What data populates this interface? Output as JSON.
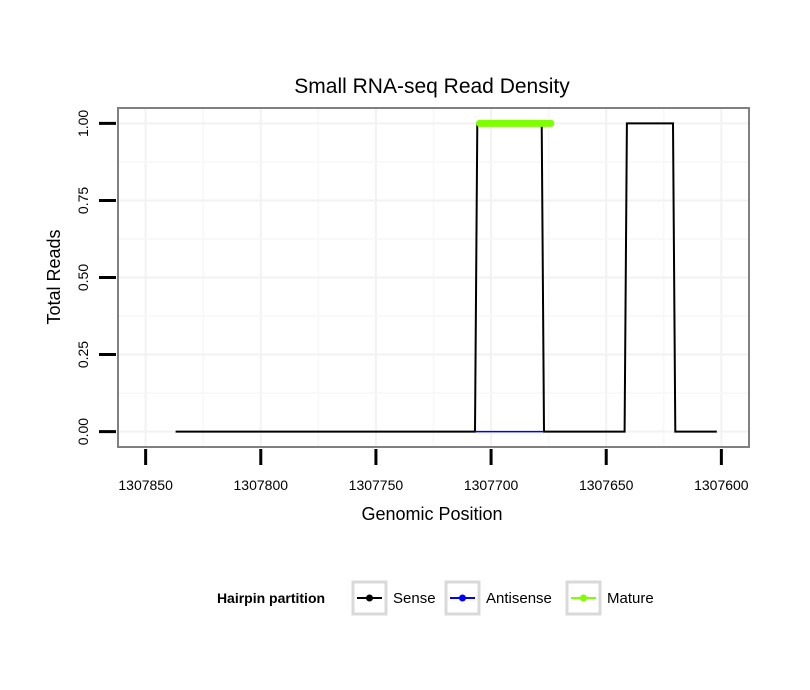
{
  "chart_data": {
    "type": "line",
    "title": "Small RNA-seq Read Density",
    "xlabel": "Genomic Position",
    "ylabel": "Total Reads",
    "x_reversed": true,
    "xlim": [
      1307862,
      1307588
    ],
    "ylim": [
      -0.05,
      1.05
    ],
    "x_ticks": [
      1307850,
      1307800,
      1307750,
      1307700,
      1307650,
      1307600
    ],
    "x_tick_labels": [
      "1307850",
      "1307800",
      "1307750",
      "1307700",
      "1307650",
      "1307600"
    ],
    "y_ticks": [
      0,
      0.25,
      0.5,
      0.75,
      1
    ],
    "y_tick_labels": [
      "0.00",
      "0.25",
      "0.50",
      "0.75",
      "1.00"
    ],
    "grid": true,
    "legend": {
      "title": "Hairpin partition",
      "placement": "bottom"
    },
    "series": [
      {
        "name": "Sense",
        "color": "#000000",
        "x": [
          1307837,
          1307707,
          1307706,
          1307678,
          1307677,
          1307642,
          1307641,
          1307621,
          1307620,
          1307602
        ],
        "y": [
          0,
          0,
          1,
          1,
          0,
          0,
          1,
          1,
          0,
          0
        ]
      },
      {
        "name": "Antisense",
        "color": "#0000ff",
        "x": [
          1307707,
          1307677,
          1307642,
          1307620
        ],
        "y": [
          0,
          0,
          null,
          0
        ]
      },
      {
        "name": "Mature",
        "color": "#7fff00",
        "x": [
          1307705,
          1307674
        ],
        "y": [
          1,
          1
        ]
      }
    ]
  }
}
